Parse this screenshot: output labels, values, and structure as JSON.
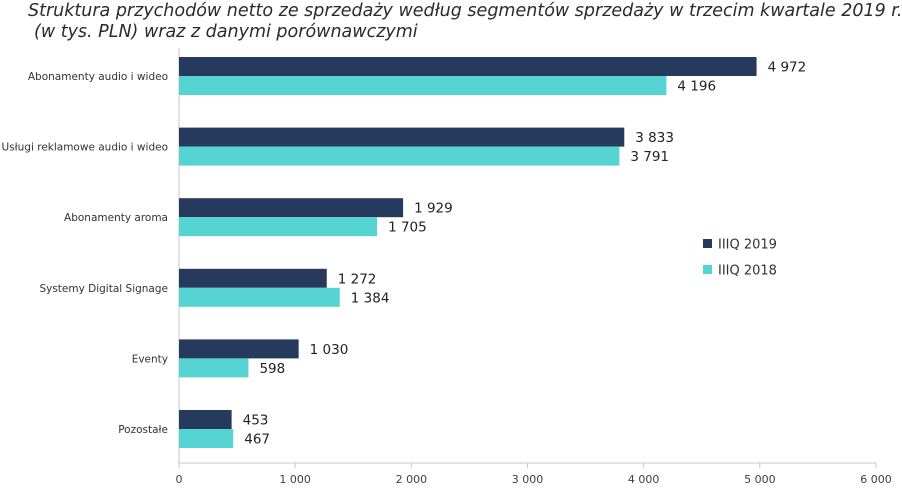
{
  "chart_data": {
    "type": "bar",
    "orientation": "horizontal",
    "title_line1": "Struktura przychodów netto ze sprzedaży według segmentów sprzedaży w trzecim kwartale 2019 r.",
    "title_line2": "(w tys. PLN) wraz z danymi porównawczymi",
    "categories": [
      "Abonamenty audio i wideo",
      "Usługi reklamowe audio i wideo",
      "Abonamenty aroma",
      "Systemy Digital Signage",
      "Eventy",
      "Pozostałe"
    ],
    "series": [
      {
        "name": "IIIQ 2019",
        "color": "#263a5e",
        "values": [
          4972,
          3833,
          1929,
          1272,
          1030,
          453
        ],
        "labels": [
          "4 972",
          "3 833",
          "1 929",
          "1 272",
          "1 030",
          "453"
        ]
      },
      {
        "name": "IIIQ 2018",
        "color": "#56d3d3",
        "values": [
          4196,
          3791,
          1705,
          1384,
          598,
          467
        ],
        "labels": [
          "4 196",
          "3 791",
          "1 705",
          "1 384",
          "598",
          "467"
        ]
      }
    ],
    "xlim": [
      0,
      6000
    ],
    "xticks": [
      0,
      1000,
      2000,
      3000,
      4000,
      5000,
      6000
    ],
    "xtick_labels": [
      "0",
      "1 000",
      "2 000",
      "3 000",
      "4 000",
      "5 000",
      "6 000"
    ],
    "legend_position": "right",
    "grid": false
  }
}
